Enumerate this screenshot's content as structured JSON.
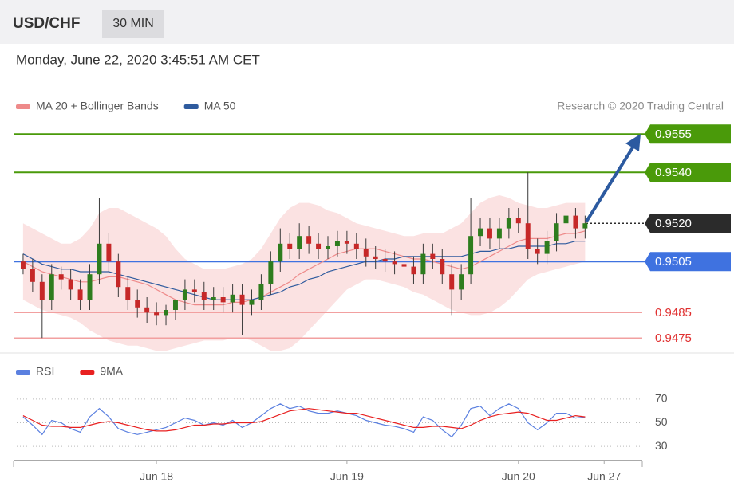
{
  "header": {
    "symbol": "USD/CHF",
    "timeframe": "30 MIN",
    "timestamp": "Monday, June 22, 2020 3:45:51 AM CET",
    "copyright": "Research © 2020 Trading Central"
  },
  "chart_data": [
    {
      "type": "candlestick",
      "up_color": "#2e7d1e",
      "down_color": "#c62828",
      "xlim": [
        -1,
        65
      ],
      "xticks": [
        {
          "value": 14,
          "label": "Jun 18"
        },
        {
          "value": 34,
          "label": "Jun 19"
        },
        {
          "value": 52,
          "label": "Jun 20"
        },
        {
          "value": 61,
          "label": "Jun 27"
        }
      ],
      "ylim": [
        0.9471,
        0.9561
      ],
      "open": [
        0.9505,
        0.9502,
        0.9497,
        0.949,
        0.95,
        0.9498,
        0.9494,
        0.949,
        0.95,
        0.9512,
        0.9505,
        0.9495,
        0.949,
        0.9487,
        0.9485,
        0.9484,
        0.9486,
        0.949,
        0.9494,
        0.9493,
        0.949,
        0.9491,
        0.9489,
        0.9492,
        0.9488,
        0.949,
        0.9496,
        0.9505,
        0.9512,
        0.951,
        0.9515,
        0.9512,
        0.951,
        0.9511,
        0.9513,
        0.9512,
        0.951,
        0.9507,
        0.9506,
        0.9505,
        0.9504,
        0.9503,
        0.95,
        0.9508,
        0.9506,
        0.95,
        0.9494,
        0.95,
        0.9515,
        0.9518,
        0.9514,
        0.9518,
        0.9522,
        0.952,
        0.951,
        0.9508,
        0.9513,
        0.952,
        0.9523,
        0.9518
      ],
      "high": [
        0.9508,
        0.9506,
        0.95,
        0.9504,
        0.9503,
        0.9502,
        0.9498,
        0.9504,
        0.953,
        0.9516,
        0.9508,
        0.9499,
        0.9494,
        0.9491,
        0.9489,
        0.9488,
        0.949,
        0.9498,
        0.9498,
        0.9497,
        0.9495,
        0.9495,
        0.9496,
        0.9496,
        0.9494,
        0.95,
        0.9509,
        0.9518,
        0.9516,
        0.952,
        0.9519,
        0.9516,
        0.9515,
        0.9517,
        0.9517,
        0.9516,
        0.9514,
        0.9511,
        0.951,
        0.9509,
        0.9508,
        0.9507,
        0.9512,
        0.9512,
        0.951,
        0.9504,
        0.9504,
        0.953,
        0.9522,
        0.9522,
        0.9522,
        0.9526,
        0.9526,
        0.954,
        0.9514,
        0.9517,
        0.9524,
        0.9527,
        0.9526,
        0.9523
      ],
      "low": [
        0.95,
        0.9493,
        0.9475,
        0.9486,
        0.9494,
        0.949,
        0.9486,
        0.9486,
        0.9496,
        0.9501,
        0.9491,
        0.9486,
        0.9483,
        0.9481,
        0.948,
        0.948,
        0.9482,
        0.9486,
        0.9489,
        0.9486,
        0.9486,
        0.9485,
        0.9485,
        0.9476,
        0.9484,
        0.9486,
        0.9492,
        0.9501,
        0.9506,
        0.9506,
        0.9508,
        0.9506,
        0.9506,
        0.9507,
        0.9508,
        0.9506,
        0.9503,
        0.9502,
        0.9501,
        0.95,
        0.9499,
        0.9496,
        0.9496,
        0.9502,
        0.9496,
        0.9484,
        0.949,
        0.9496,
        0.9511,
        0.951,
        0.951,
        0.9514,
        0.9516,
        0.9506,
        0.9504,
        0.9504,
        0.9509,
        0.9516,
        0.9514,
        0.9514
      ],
      "close": [
        0.9502,
        0.9497,
        0.949,
        0.95,
        0.9498,
        0.9494,
        0.949,
        0.95,
        0.9512,
        0.9505,
        0.9495,
        0.949,
        0.9487,
        0.9485,
        0.9484,
        0.9486,
        0.949,
        0.9494,
        0.9493,
        0.949,
        0.9491,
        0.9489,
        0.9492,
        0.9488,
        0.949,
        0.9496,
        0.9505,
        0.9512,
        0.951,
        0.9515,
        0.9512,
        0.951,
        0.9511,
        0.9513,
        0.9512,
        0.951,
        0.9507,
        0.9506,
        0.9505,
        0.9504,
        0.9503,
        0.95,
        0.9508,
        0.9506,
        0.95,
        0.9494,
        0.95,
        0.9515,
        0.9518,
        0.9514,
        0.9518,
        0.9522,
        0.952,
        0.951,
        0.9508,
        0.9513,
        0.952,
        0.9523,
        0.9518,
        0.952
      ],
      "series": [
        {
          "name": "MA 20 + Bollinger Bands",
          "color": "#ee8a8a",
          "values": [
            0.9505,
            0.9503,
            0.9501,
            0.95,
            0.9499,
            0.9498,
            0.9497,
            0.9497,
            0.9498,
            0.9499,
            0.9499,
            0.9498,
            0.9497,
            0.9496,
            0.9494,
            0.9492,
            0.949,
            0.9489,
            0.9488,
            0.9488,
            0.9488,
            0.9488,
            0.9489,
            0.9489,
            0.949,
            0.9491,
            0.9493,
            0.9495,
            0.9497,
            0.95,
            0.9502,
            0.9504,
            0.9506,
            0.9508,
            0.9509,
            0.951,
            0.951,
            0.951,
            0.9509,
            0.9508,
            0.9507,
            0.9506,
            0.9506,
            0.9505,
            0.9504,
            0.9503,
            0.9502,
            0.9503,
            0.9505,
            0.9507,
            0.9509,
            0.9511,
            0.9513,
            0.9514,
            0.9514,
            0.9514,
            0.9515,
            0.9516,
            0.9516,
            0.9517
          ],
          "upper": [
            0.952,
            0.9518,
            0.9516,
            0.9514,
            0.9512,
            0.9512,
            0.9514,
            0.9518,
            0.9524,
            0.9526,
            0.9526,
            0.9524,
            0.9522,
            0.952,
            0.9518,
            0.9515,
            0.951,
            0.9506,
            0.9504,
            0.9502,
            0.9502,
            0.9502,
            0.9503,
            0.9504,
            0.9506,
            0.951,
            0.9516,
            0.9522,
            0.9526,
            0.9528,
            0.9528,
            0.9527,
            0.9525,
            0.9524,
            0.9522,
            0.952,
            0.9519,
            0.9518,
            0.9517,
            0.9516,
            0.9515,
            0.9515,
            0.9516,
            0.9516,
            0.9516,
            0.9518,
            0.952,
            0.9524,
            0.9528,
            0.953,
            0.9531,
            0.953,
            0.9528,
            0.9527,
            0.9526,
            0.9526,
            0.9527,
            0.9528,
            0.9528,
            0.9528
          ],
          "lower": [
            0.949,
            0.9488,
            0.9486,
            0.9485,
            0.9484,
            0.9483,
            0.9481,
            0.9478,
            0.9476,
            0.9474,
            0.9473,
            0.9472,
            0.9472,
            0.9471,
            0.947,
            0.947,
            0.9471,
            0.9472,
            0.9473,
            0.9474,
            0.9474,
            0.9474,
            0.9475,
            0.9475,
            0.9474,
            0.9472,
            0.947,
            0.947,
            0.9471,
            0.9474,
            0.9478,
            0.9482,
            0.9486,
            0.949,
            0.9494,
            0.9496,
            0.9498,
            0.9498,
            0.9497,
            0.9496,
            0.9495,
            0.9493,
            0.9492,
            0.949,
            0.9488,
            0.9486,
            0.9485,
            0.9484,
            0.9484,
            0.9485,
            0.9487,
            0.949,
            0.9494,
            0.9498,
            0.95,
            0.9501,
            0.9502,
            0.9503,
            0.9504,
            0.9505
          ]
        },
        {
          "name": "MA 50",
          "color": "#2f5b9e",
          "values": [
            0.9508,
            0.9506,
            0.9504,
            0.9503,
            0.9502,
            0.9502,
            0.9501,
            0.9501,
            0.9501,
            0.9501,
            0.95,
            0.9499,
            0.9498,
            0.9497,
            0.9496,
            0.9495,
            0.9494,
            0.9493,
            0.9492,
            0.9491,
            0.949,
            0.949,
            0.949,
            0.949,
            0.949,
            0.9491,
            0.9492,
            0.9493,
            0.9495,
            0.9496,
            0.9498,
            0.9499,
            0.9501,
            0.9502,
            0.9503,
            0.9504,
            0.9505,
            0.9505,
            0.9506,
            0.9506,
            0.9507,
            0.9507,
            0.9507,
            0.9507,
            0.9507,
            0.9507,
            0.9507,
            0.9508,
            0.9509,
            0.9509,
            0.951,
            0.951,
            0.9511,
            0.9511,
            0.9511,
            0.9511,
            0.9512,
            0.9512,
            0.9513,
            0.9513
          ]
        }
      ],
      "levels": [
        {
          "value": 0.9555,
          "color": "#4a9a0a",
          "boxed": true
        },
        {
          "value": 0.954,
          "label": "0.9540",
          "color": "#4a9a0a",
          "boxed": true
        },
        {
          "value": 0.952,
          "label": "0.9520",
          "color": "#2b2b2b",
          "boxed": true,
          "dotted": true
        },
        {
          "value": 0.9505,
          "color": "#3f72e0",
          "boxed": true
        },
        {
          "value": 0.9485,
          "color": "#e03030",
          "boxed": false
        },
        {
          "value": 0.9475,
          "color": "#e03030",
          "boxed": false
        }
      ]
    },
    {
      "type": "line",
      "xlim": [
        -1,
        65
      ],
      "ylim": [
        20,
        80
      ],
      "yticks": [
        30,
        50,
        70
      ],
      "grid": true,
      "series": [
        {
          "name": "RSI",
          "color": "#5b80e0",
          "values": [
            55,
            48,
            40,
            52,
            50,
            45,
            42,
            55,
            62,
            55,
            45,
            42,
            40,
            42,
            44,
            46,
            50,
            54,
            52,
            48,
            50,
            48,
            52,
            46,
            50,
            56,
            62,
            66,
            62,
            64,
            60,
            58,
            58,
            60,
            58,
            56,
            52,
            50,
            48,
            47,
            45,
            42,
            55,
            52,
            44,
            38,
            48,
            62,
            64,
            56,
            62,
            66,
            62,
            50,
            44,
            50,
            58,
            58,
            54,
            55
          ]
        },
        {
          "name": "9MA",
          "color": "#e82020",
          "values": [
            56,
            52,
            48,
            47,
            47,
            46,
            46,
            48,
            50,
            51,
            50,
            48,
            46,
            44,
            43,
            43,
            44,
            46,
            48,
            48,
            49,
            49,
            50,
            50,
            50,
            51,
            54,
            57,
            60,
            61,
            62,
            61,
            60,
            59,
            58,
            58,
            56,
            54,
            52,
            50,
            48,
            46,
            46,
            47,
            47,
            46,
            45,
            48,
            52,
            55,
            57,
            58,
            59,
            58,
            55,
            52,
            52,
            54,
            56,
            55
          ]
        }
      ]
    }
  ]
}
